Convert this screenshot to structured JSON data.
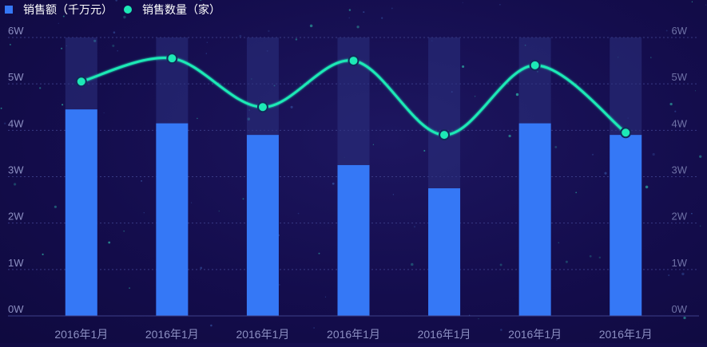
{
  "chart_data": {
    "type": "bar",
    "title": "",
    "categories": [
      "2016年1月",
      "2016年1月",
      "2016年1月",
      "2016年1月",
      "2016年1月",
      "2016年1月",
      "2016年1月"
    ],
    "series": [
      {
        "name": "销售额（千万元）",
        "type": "bar",
        "axis": "left",
        "color": "#3578f6",
        "values": [
          44500,
          41500,
          39000,
          32500,
          27500,
          41500,
          39000
        ]
      },
      {
        "name": "销售数量（家）",
        "type": "line",
        "axis": "right",
        "color": "#1de9b6",
        "values": [
          50500,
          55500,
          45000,
          55000,
          39000,
          54000,
          39500
        ]
      }
    ],
    "ylim": [
      0,
      60000
    ],
    "y_ticks": [
      0,
      10000,
      20000,
      30000,
      40000,
      50000,
      60000
    ],
    "y_tick_labels": [
      "0W",
      "1W",
      "2W",
      "3W",
      "4W",
      "5W",
      "6W"
    ],
    "y2_tick_labels": [
      "0W",
      "1W",
      "2W",
      "3W",
      "4W",
      "5W",
      "6W"
    ],
    "xlabel": "",
    "ylabel": "",
    "grid": true,
    "legend_position": "top-left"
  },
  "legend": {
    "bar_label": "销售额（千万元）",
    "line_label": "销售数量（家）"
  }
}
